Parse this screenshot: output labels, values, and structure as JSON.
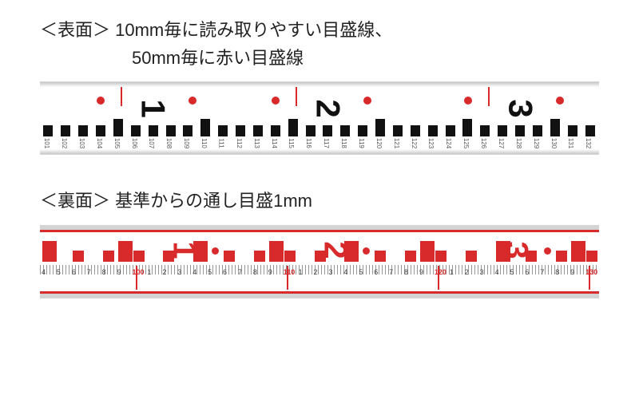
{
  "front": {
    "caption_prefix": "＜表面＞ ",
    "caption_line1": "10mm毎に読み取りやすい目盛線、",
    "caption_line2": "50mm毎に赤い目盛線",
    "big_numbers": [
      "1",
      "2",
      "3"
    ],
    "big_number_color": "#111111",
    "red_dot_color": "#d82a2a",
    "small_labels": [
      "101",
      "102",
      "103",
      "104",
      "105",
      "106",
      "107",
      "108",
      "109",
      "110",
      "111",
      "112",
      "113",
      "114",
      "115",
      "116",
      "117",
      "118",
      "119",
      "120",
      "121",
      "122",
      "123",
      "124",
      "125",
      "126",
      "127",
      "128",
      "129",
      "130",
      "131",
      "132"
    ],
    "bg": "#ffffff"
  },
  "back": {
    "caption_prefix": "＜裏面＞ ",
    "caption_line1": "基準からの通し目盛1mm",
    "big_numbers": [
      "1",
      "2",
      "3"
    ],
    "big_number_color": "#d82a2a",
    "small_labels": [
      "4",
      "5",
      "6",
      "7",
      "8",
      "9",
      "100",
      "1",
      "2",
      "3",
      "4",
      "5",
      "6",
      "7",
      "8",
      "9",
      "110",
      "1",
      "2",
      "3",
      "4",
      "5",
      "6",
      "7",
      "8",
      "9",
      "120",
      "1",
      "2",
      "3",
      "4",
      "5",
      "6",
      "7",
      "8",
      "9",
      "130"
    ],
    "red_indices": [
      6,
      16,
      26,
      36
    ],
    "bg": "#ffffff"
  },
  "colors": {
    "red": "#d82a2a",
    "black": "#111111",
    "frame_gray": "#d4d4d4"
  }
}
